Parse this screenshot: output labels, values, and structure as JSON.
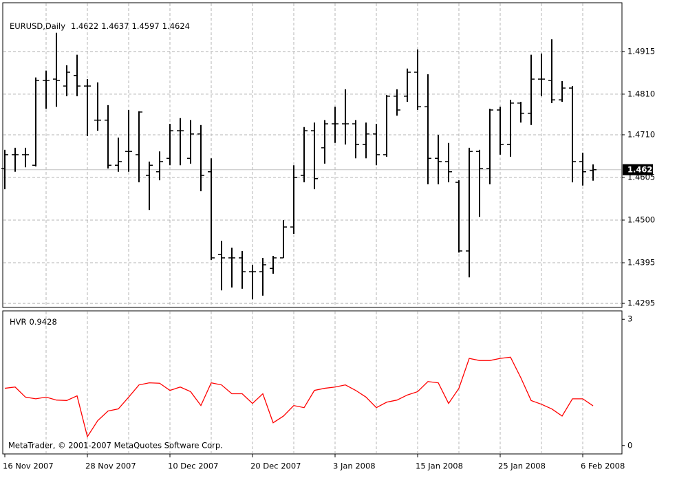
{
  "chart_data": [
    {
      "type": "ohlc",
      "title": "EURUSD,Daily",
      "color": "#000000",
      "open": [
        1.4627,
        1.4661,
        1.4661,
        1.4635,
        1.4844,
        1.4847,
        1.483,
        1.4856,
        1.483,
        1.4746,
        1.4746,
        1.4635,
        1.4669,
        1.4661,
        1.461,
        1.4619,
        1.4652,
        1.472,
        1.4652,
        1.4712,
        1.4619,
        1.4415,
        1.4407,
        1.4407,
        1.4373,
        1.4373,
        1.4381,
        1.4407,
        1.4483,
        1.461,
        1.472,
        1.4678,
        1.4737,
        1.4737,
        1.4737,
        1.4686,
        1.4712,
        1.4661,
        1.4805,
        1.4805,
        1.4864,
        1.4779,
        1.4652,
        1.4644,
        1.4593,
        1.4424,
        1.4669,
        1.4627,
        1.4771,
        1.4686,
        1.4788,
        1.4763,
        1.4847,
        1.4844,
        1.4796,
        1.4825,
        1.4644,
        1.4622
      ],
      "high": [
        1.4673,
        1.4678,
        1.4678,
        1.4851,
        1.4868,
        1.4961,
        1.4881,
        1.4907,
        1.4847,
        1.4839,
        1.4783,
        1.4703,
        1.4771,
        1.4768,
        1.4644,
        1.4669,
        1.4737,
        1.4751,
        1.4746,
        1.4734,
        1.4652,
        1.4449,
        1.4432,
        1.4424,
        1.439,
        1.4407,
        1.4412,
        1.45,
        1.4635,
        1.4729,
        1.474,
        1.4746,
        1.4779,
        1.4822,
        1.4746,
        1.474,
        1.4737,
        1.4808,
        1.4822,
        1.4873,
        1.492,
        1.4859,
        1.471,
        1.469,
        1.4598,
        1.4678,
        1.4673,
        1.4774,
        1.4779,
        1.4796,
        1.4791,
        1.4907,
        1.491,
        1.4945,
        1.4842,
        1.483,
        1.4666,
        1.4637
      ],
      "low": [
        1.4576,
        1.4619,
        1.463,
        1.4632,
        1.4774,
        1.4779,
        1.4805,
        1.4805,
        1.4707,
        1.472,
        1.4627,
        1.4619,
        1.4619,
        1.4593,
        1.4525,
        1.4598,
        1.4635,
        1.4635,
        1.4639,
        1.4571,
        1.4402,
        1.4327,
        1.4334,
        1.4331,
        1.4305,
        1.4314,
        1.4368,
        1.4407,
        1.4466,
        1.4593,
        1.4576,
        1.4639,
        1.469,
        1.4686,
        1.4652,
        1.4652,
        1.4635,
        1.4656,
        1.4757,
        1.4791,
        1.4771,
        1.4588,
        1.4588,
        1.4593,
        1.442,
        1.4359,
        1.4508,
        1.4588,
        1.4661,
        1.4656,
        1.474,
        1.4734,
        1.4805,
        1.4788,
        1.4791,
        1.4593,
        1.4585,
        1.4597
      ],
      "close": [
        1.4661,
        1.4661,
        1.4661,
        1.4844,
        1.4844,
        1.4844,
        1.4864,
        1.483,
        1.483,
        1.4746,
        1.4635,
        1.4644,
        1.4669,
        1.4766,
        1.4635,
        1.4644,
        1.472,
        1.472,
        1.4712,
        1.461,
        1.4407,
        1.4407,
        1.4407,
        1.4373,
        1.4373,
        1.439,
        1.4407,
        1.4483,
        1.4605,
        1.472,
        1.4602,
        1.4737,
        1.4737,
        1.4737,
        1.4686,
        1.4712,
        1.4661,
        1.4805,
        1.4771,
        1.4864,
        1.4779,
        1.4652,
        1.4644,
        1.4619,
        1.4424,
        1.4669,
        1.4627,
        1.4771,
        1.4686,
        1.4788,
        1.4763,
        1.4847,
        1.4847,
        1.4796,
        1.4825,
        1.4644,
        1.4619,
        1.4624
      ],
      "ylim": [
        1.4285,
        1.5035
      ],
      "yticks": [
        1.4915,
        {
          "value": 1.481,
          "label": "1.4810"
        },
        {
          "value": 1.471,
          "label": "1.4710"
        },
        1.4605,
        {
          "value": 1.45,
          "label": "1.4500"
        },
        1.4395,
        1.4295
      ],
      "grid": true
    },
    {
      "type": "line",
      "title": "HVR",
      "color": "#ff0000",
      "categories": [
        "16 Nov 2007",
        null,
        null,
        null,
        null,
        null,
        null,
        null,
        "28 Nov 2007",
        null,
        null,
        null,
        null,
        null,
        null,
        null,
        "10 Dec 2007",
        null,
        null,
        null,
        null,
        null,
        null,
        null,
        "20 Dec 2007",
        null,
        null,
        null,
        null,
        null,
        null,
        null,
        "3 Jan 2008",
        null,
        null,
        null,
        null,
        null,
        null,
        null,
        "15 Jan 2008",
        null,
        null,
        null,
        null,
        null,
        null,
        null,
        "25 Jan 2008",
        null,
        null,
        null,
        null,
        null,
        null,
        null,
        "6 Feb 2008",
        null
      ],
      "values": [
        1.36,
        1.39,
        1.15,
        1.11,
        1.15,
        1.08,
        1.07,
        1.18,
        0.21,
        0.59,
        0.82,
        0.87,
        1.15,
        1.44,
        1.49,
        1.48,
        1.31,
        1.39,
        1.28,
        0.95,
        1.49,
        1.44,
        1.23,
        1.23,
        1.0,
        1.23,
        0.54,
        0.7,
        0.95,
        0.9,
        1.31,
        1.36,
        1.39,
        1.44,
        1.31,
        1.15,
        0.9,
        1.03,
        1.08,
        1.2,
        1.28,
        1.52,
        1.49,
        1.0,
        1.36,
        2.07,
        2.02,
        2.02,
        2.07,
        2.1,
        1.61,
        1.07,
        0.98,
        0.87,
        0.7,
        1.11,
        1.11,
        0.9428
      ],
      "ylim": [
        -0.2,
        3.2
      ],
      "yticks": [
        0,
        3
      ],
      "grid": false
    }
  ],
  "footer": "MetaTrader, © 2001-2007 MetaQuotes Software Corp."
}
